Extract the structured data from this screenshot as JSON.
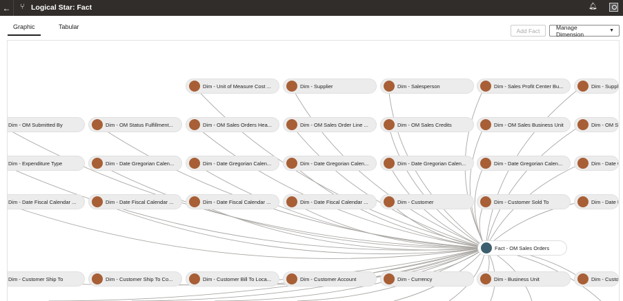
{
  "header": {
    "title": "Logical Star: Fact",
    "back_icon": "arrow-left-icon",
    "title_icon": "branch-icon",
    "notification_icon": "bell-icon",
    "user_icon": "user-avatar-icon"
  },
  "tabs": [
    {
      "label": "Graphic",
      "active": true
    },
    {
      "label": "Tabular",
      "active": false
    }
  ],
  "toolbar": {
    "add_fact": "Add Fact",
    "add_fact_enabled": false,
    "manage_dimension": "Manage Dimension"
  },
  "colors": {
    "dimension": "#a85f36",
    "fact": "#3d5e6e",
    "header": "#312d2a"
  },
  "graph": {
    "fact": {
      "label": "Fact - OM Sales Orders"
    },
    "rows": [
      [
        "",
        "",
        "Dim - Unit of Measure Cost ...",
        "Dim - Supplier",
        "Dim - Salesperson",
        "Dim - Sales Profit Center Bu...",
        "Dim - Supplie"
      ],
      [
        "Dim - OM Submitted By",
        "Dim - OM Status Fulfillment...",
        "Dim - OM Sales Orders Hea...",
        "Dim - OM Sales Order Line ...",
        "Dim - OM Sales Credits",
        "Dim - OM Sales Business Unit",
        "Dim - OM Sal"
      ],
      [
        "Dim - Expenditure Type",
        "Dim - Date Gregorian Calen...",
        "Dim - Date Gregorian Calen...",
        "Dim - Date Gregorian Calen...",
        "Dim - Date Gregorian Calen...",
        "Dim - Date Gregorian Calen...",
        "Dim - Date Gr"
      ],
      [
        "Dim - Date Fiscal Calendar ...",
        "Dim - Date Fiscal Calendar ...",
        "Dim - Date Fiscal Calendar ...",
        "Dim - Date Fiscal Calendar ...",
        "Dim - Customer",
        "Dim - Customer Sold To",
        "Dim - Date Fis"
      ],
      [
        "Dim - Customer Ship To",
        "Dim - Customer Ship To Co...",
        "Dim - Customer Bill To Loca...",
        "Dim - Customer Account",
        "Dim - Currency",
        "Dim - Business Unit",
        "Dim - Custom"
      ]
    ]
  }
}
